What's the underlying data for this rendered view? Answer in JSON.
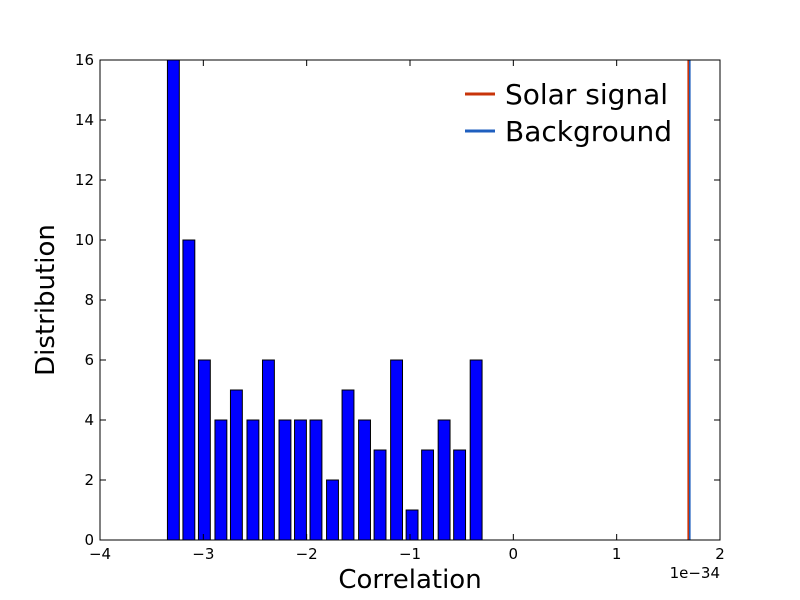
{
  "chart_data": {
    "type": "bar",
    "title": "",
    "xlabel": "Correlation",
    "ylabel": "Distribution",
    "x_offset_label": "1e−34",
    "xlim": [
      -4,
      2
    ],
    "ylim": [
      0,
      16
    ],
    "xticks": [
      -4,
      -3,
      -2,
      -1,
      0,
      1,
      2
    ],
    "xtick_labels": [
      "−4",
      "−3",
      "−2",
      "−1",
      "0",
      "1",
      "2"
    ],
    "yticks": [
      0,
      2,
      4,
      6,
      8,
      10,
      12,
      14,
      16
    ],
    "ytick_labels": [
      "0",
      "2",
      "4",
      "6",
      "8",
      "10",
      "12",
      "14",
      "16"
    ],
    "grid": false,
    "legend_position": "top-right",
    "bar_color": "#0000ff",
    "bar_width": 0.115,
    "bars": [
      {
        "x": -3.29,
        "value": 16
      },
      {
        "x": -3.14,
        "value": 10
      },
      {
        "x": -2.99,
        "value": 6
      },
      {
        "x": -2.83,
        "value": 4
      },
      {
        "x": -2.68,
        "value": 5
      },
      {
        "x": -2.52,
        "value": 4
      },
      {
        "x": -2.37,
        "value": 6
      },
      {
        "x": -2.21,
        "value": 4
      },
      {
        "x": -2.06,
        "value": 4
      },
      {
        "x": -1.91,
        "value": 4
      },
      {
        "x": -1.75,
        "value": 2
      },
      {
        "x": -1.6,
        "value": 5
      },
      {
        "x": -1.44,
        "value": 4
      },
      {
        "x": -1.29,
        "value": 3
      },
      {
        "x": -1.13,
        "value": 6
      },
      {
        "x": -0.98,
        "value": 1
      },
      {
        "x": -0.83,
        "value": 3
      },
      {
        "x": -0.67,
        "value": 4
      },
      {
        "x": -0.52,
        "value": 3
      },
      {
        "x": -0.36,
        "value": 6
      }
    ],
    "vlines": [
      {
        "name": "Solar signal",
        "x": 1.7,
        "color": "#c8340a"
      },
      {
        "name": "Background",
        "x": 1.7,
        "color": "#1f5fbf"
      }
    ]
  }
}
